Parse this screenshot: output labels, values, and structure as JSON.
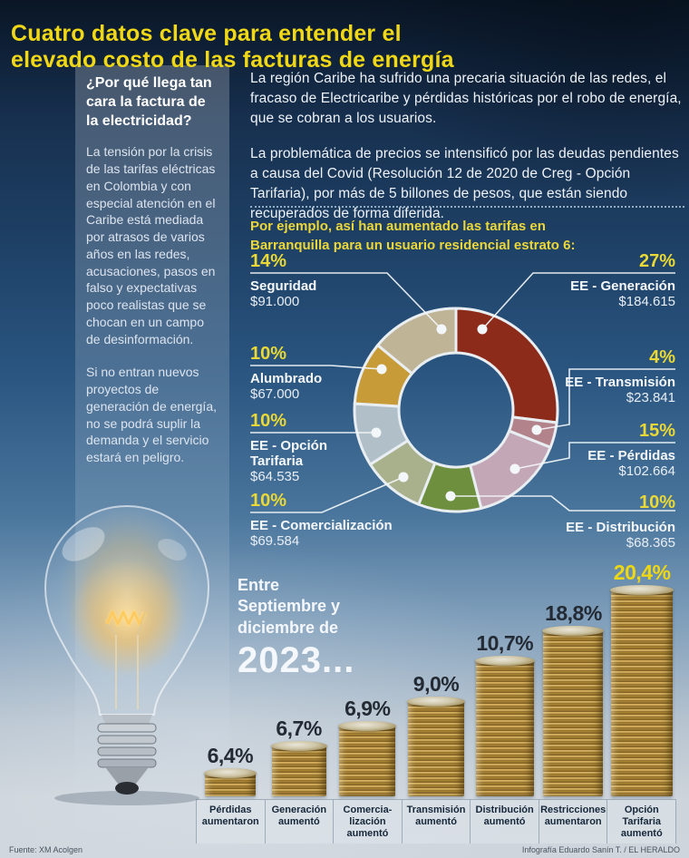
{
  "header": {
    "title": "Cuatro datos clave para entender el\nelevado costo de las facturas de energía"
  },
  "sidebar": {
    "heading": "¿Por qué llega tan cara la factura de la electricidad?",
    "para1": "La tensión por la crisis de las tarifas eléctricas en Colombia y con especial atención en el Caribe está mediada por atrasos de varios años en las redes, acusaciones, pasos en falso y expectativas poco realistas que se chocan en un campo de desinformación.",
    "para2": "Si no entran nuevos proyectos de generación de energía, no se podrá suplir la demanda y el servicio estará en peligro."
  },
  "intro": {
    "para1": "La región Caribe ha sufrido una precaria situación de las redes, el fracaso de Electricaribe y pérdidas históricas por el robo de energía, que se cobran a los usuarios.",
    "para2": "La problemática de precios se intensificó por las deudas pendientes a causa del Covid (Resolución 12 de 2020 de Creg - Opción Tarifaria), por más de 5 billones de pesos, que están siendo recuperados de forma diferida."
  },
  "donut_section": {
    "subtitle": "Por ejemplo, así han aumentado las tarifas en\nBarranquilla para un usuario residencial estrato 6:"
  },
  "between": {
    "lines": "Entre\nSeptiembre y\ndiciembre de",
    "year": "2023..."
  },
  "footer": {
    "source": "Fuente: XM Acolgen",
    "credit": "Infografía Eduardo Sanín T. / EL HERALDO"
  },
  "colors": {
    "accent_yellow": "#f0d817",
    "background_navy": "#17304f"
  },
  "chart_data": [
    {
      "type": "pie",
      "subtype": "donut",
      "title": "Aumento de tarifas en Barranquilla para un usuario residencial estrato 6",
      "legend_position": "around",
      "slices": [
        {
          "label": "EE - Generación",
          "pct": 27,
          "pct_label": "27%",
          "value": "$184.615",
          "color": "#8c2b19",
          "side": "right"
        },
        {
          "label": "EE - Transmisión",
          "pct": 4,
          "pct_label": "4%",
          "value": "$23.841",
          "color": "#b2838b",
          "side": "right"
        },
        {
          "label": "EE - Pérdidas",
          "pct": 15,
          "pct_label": "15%",
          "value": "$102.664",
          "color": "#c3a7b6",
          "side": "right"
        },
        {
          "label": "EE - Distribución",
          "pct": 10,
          "pct_label": "10%",
          "value": "$68.365",
          "color": "#6e8f3e",
          "side": "right"
        },
        {
          "label": "EE - Comercialización",
          "pct": 10,
          "pct_label": "10%",
          "value": "$69.584",
          "color": "#a8b18c",
          "side": "left"
        },
        {
          "label": "EE - Opción Tarifaria",
          "label_display": "EE - Opción\nTarifaria",
          "pct": 10,
          "pct_label": "10%",
          "value": "$64.535",
          "color": "#b1c0c8",
          "side": "left"
        },
        {
          "label": "Alumbrado",
          "pct": 10,
          "pct_label": "10%",
          "value": "$67.000",
          "color": "#c79b37",
          "side": "left"
        },
        {
          "label": "Seguridad",
          "pct": 14,
          "pct_label": "14%",
          "value": "$91.000",
          "color": "#c0b496",
          "side": "left"
        }
      ]
    },
    {
      "type": "bar",
      "title": "Entre Septiembre y diciembre de 2023...",
      "categories": [
        "Pérdidas\naumentaron",
        "Generación\naumentó",
        "Comercia-\nlización\naumentó",
        "Transmisión\naumentó",
        "Distribución\naumentó",
        "Restricciones\naumentaron",
        "Opción\nTarifaria\naumentó"
      ],
      "values": [
        6.4,
        6.7,
        6.9,
        9.0,
        10.7,
        18.8,
        20.4
      ],
      "value_labels": [
        "6,4%",
        "6,7%",
        "6,9%",
        "9,0%",
        "10,7%",
        "18,8%",
        "20,4%"
      ],
      "unit": "%",
      "highlight_index": 6,
      "highlight_color": "#eed714"
    }
  ]
}
